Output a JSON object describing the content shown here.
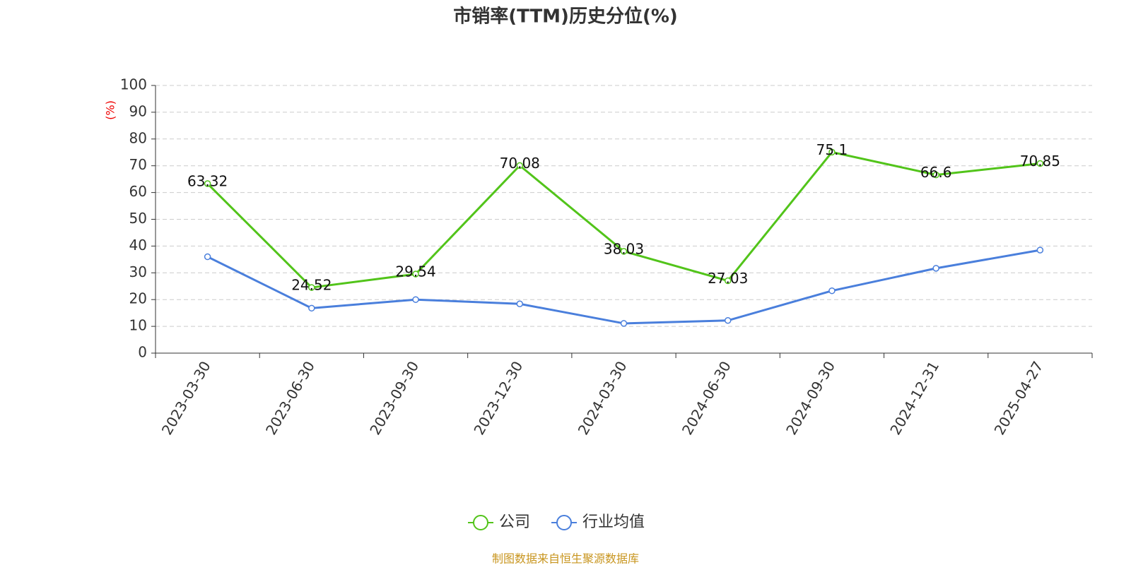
{
  "chart_data": {
    "type": "line",
    "title": "市销率(TTM)历史分位(%)",
    "y_label": "(%)",
    "categories": [
      "2023-03-30",
      "2023-06-30",
      "2023-09-30",
      "2023-12-30",
      "2024-03-30",
      "2024-06-30",
      "2024-09-30",
      "2024-12-31",
      "2025-04-27"
    ],
    "series": [
      {
        "name": "公司",
        "color": "#52c41a",
        "values": [
          63.32,
          24.52,
          29.54,
          70.08,
          38.03,
          27.03,
          75.1,
          66.6,
          70.85
        ]
      },
      {
        "name": "行业均值",
        "color": "#4a7fdc",
        "values": [
          36.0,
          16.8,
          20.0,
          18.4,
          11.1,
          12.2,
          23.3,
          31.7,
          38.5
        ]
      }
    ],
    "ylim": [
      0,
      100
    ],
    "yticks": [
      0,
      10,
      20,
      30,
      40,
      50,
      60,
      70,
      80,
      90,
      100
    ],
    "grid": true,
    "source": "制图数据来自恒生聚源数据库"
  }
}
